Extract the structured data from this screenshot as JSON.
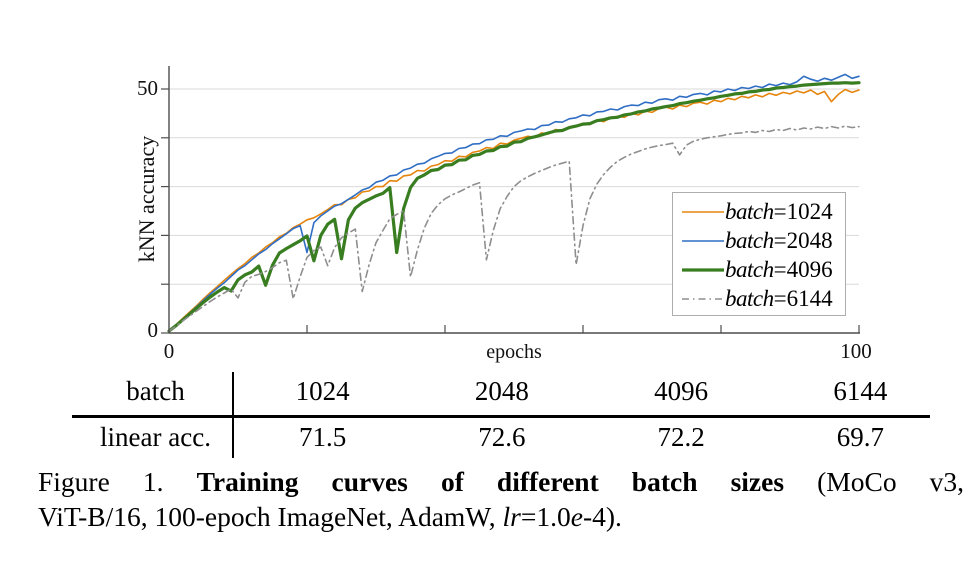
{
  "axes": {
    "ylabel": "kNN accuracy",
    "xlabel": "epochs",
    "y_tick_top": "50",
    "y_tick_bottom": "0",
    "x_tick_left": "0",
    "x_tick_right": "100"
  },
  "chart_data": {
    "type": "line",
    "title": "",
    "xlabel": "epochs",
    "ylabel": "kNN accuracy",
    "xlim": [
      0,
      100
    ],
    "ylim": [
      0,
      56
    ],
    "x_ticks": [
      0,
      20,
      40,
      60,
      80,
      100
    ],
    "y_ticks": [
      0,
      10,
      20,
      30,
      40,
      50
    ],
    "grid": "horizontal",
    "legend_position": "inside lower right",
    "x": [
      0,
      1,
      2,
      3,
      4,
      5,
      6,
      7,
      8,
      9,
      10,
      11,
      12,
      13,
      14,
      15,
      16,
      17,
      18,
      19,
      20,
      21,
      22,
      23,
      24,
      25,
      26,
      27,
      28,
      29,
      30,
      31,
      32,
      33,
      34,
      35,
      36,
      37,
      38,
      39,
      40,
      41,
      42,
      43,
      44,
      45,
      46,
      47,
      48,
      49,
      50,
      51,
      52,
      53,
      54,
      55,
      56,
      57,
      58,
      59,
      60,
      61,
      62,
      63,
      64,
      65,
      66,
      67,
      68,
      69,
      70,
      71,
      72,
      73,
      74,
      75,
      76,
      77,
      78,
      79,
      80,
      81,
      82,
      83,
      84,
      85,
      86,
      87,
      88,
      89,
      90,
      91,
      92,
      93,
      94,
      95,
      96,
      97,
      98,
      99,
      100
    ],
    "series": [
      {
        "name": "batch=1024",
        "var": "batch",
        "value_label": "=1024",
        "color": "#e6850e",
        "width": 1.6,
        "dash": "solid",
        "y": [
          0.5,
          1.7,
          3.0,
          4.3,
          5.6,
          7.0,
          8.3,
          9.5,
          10.8,
          12.0,
          13.2,
          14.2,
          15.5,
          16.4,
          17.6,
          18.5,
          19.7,
          20.4,
          21.6,
          22.3,
          23.2,
          23.6,
          24.4,
          25.3,
          26.3,
          26.3,
          27.4,
          27.7,
          28.9,
          29.1,
          30.0,
          30.0,
          31.2,
          31.1,
          32.2,
          32.4,
          33.3,
          33.2,
          34.2,
          34.5,
          35.3,
          35.2,
          36.2,
          36.1,
          37.0,
          37.3,
          38.0,
          37.8,
          38.9,
          38.7,
          39.5,
          39.9,
          40.3,
          40.1,
          41.0,
          40.8,
          41.7,
          41.5,
          42.2,
          42.5,
          43.0,
          42.7,
          43.6,
          43.3,
          44.1,
          44.4,
          44.2,
          45.0,
          44.7,
          45.5,
          45.2,
          46.0,
          46.3,
          45.9,
          46.7,
          46.4,
          47.1,
          47.3,
          46.9,
          47.7,
          47.4,
          48.1,
          47.8,
          48.5,
          48.2,
          48.8,
          48.4,
          49.1,
          48.7,
          49.3,
          49.0,
          49.6,
          49.2,
          49.8,
          48.9,
          49.5,
          47.4,
          48.9,
          49.9,
          49.3,
          49.8
        ]
      },
      {
        "name": "batch=2048",
        "var": "batch",
        "value_label": "=2048",
        "color": "#2f6ec4",
        "width": 1.6,
        "dash": "solid",
        "y": [
          0.5,
          1.6,
          2.8,
          4.1,
          5.4,
          6.7,
          8.0,
          9.2,
          10.3,
          11.6,
          12.9,
          13.8,
          15.0,
          16.2,
          17.1,
          18.3,
          19.3,
          20.3,
          21.4,
          22.0,
          16.5,
          22.6,
          24.0,
          25.0,
          26.0,
          26.5,
          27.4,
          28.3,
          29.3,
          29.8,
          30.9,
          31.3,
          32.2,
          32.4,
          33.4,
          33.8,
          34.6,
          34.8,
          35.7,
          36.2,
          36.8,
          36.9,
          37.8,
          38.0,
          38.7,
          38.8,
          39.6,
          39.7,
          40.4,
          40.3,
          41.1,
          41.4,
          41.8,
          41.7,
          42.5,
          42.6,
          43.3,
          43.2,
          43.9,
          44.1,
          44.7,
          44.5,
          45.3,
          45.4,
          45.9,
          45.7,
          46.4,
          46.7,
          46.6,
          47.3,
          47.1,
          47.8,
          48.0,
          47.7,
          48.5,
          48.3,
          48.9,
          49.1,
          48.8,
          49.6,
          49.4,
          50.0,
          49.7,
          50.3,
          50.1,
          50.6,
          50.3,
          51.0,
          50.7,
          51.2,
          50.9,
          51.5,
          52.6,
          52.0,
          51.6,
          52.2,
          51.8,
          52.4,
          53.0,
          52.2,
          52.6
        ]
      },
      {
        "name": "batch=4096",
        "var": "batch",
        "value_label": "=4096",
        "color": "#397d21",
        "width": 3.2,
        "dash": "solid",
        "y": [
          0.4,
          1.5,
          2.7,
          3.9,
          5.1,
          6.3,
          7.4,
          8.4,
          9.3,
          8.6,
          10.9,
          11.9,
          12.5,
          13.7,
          9.8,
          13.9,
          16.4,
          17.3,
          18.1,
          18.9,
          19.9,
          14.8,
          20.0,
          22.3,
          23.3,
          15.2,
          23.2,
          25.6,
          26.7,
          27.4,
          28.1,
          28.6,
          29.8,
          16.5,
          25.5,
          29.8,
          31.7,
          32.4,
          33.3,
          33.5,
          34.4,
          34.5,
          35.4,
          35.5,
          36.4,
          36.6,
          37.3,
          37.4,
          38.2,
          38.3,
          39.1,
          39.2,
          39.9,
          40.2,
          40.6,
          41.0,
          41.4,
          41.5,
          42.1,
          42.4,
          42.8,
          42.9,
          43.5,
          43.7,
          44.1,
          44.2,
          44.7,
          44.9,
          45.3,
          45.5,
          45.9,
          46.1,
          46.4,
          46.6,
          47.0,
          47.2,
          47.5,
          47.7,
          48.0,
          48.2,
          48.5,
          48.7,
          49.0,
          49.1,
          49.4,
          49.5,
          49.8,
          49.9,
          50.2,
          50.3,
          50.5,
          50.6,
          50.8,
          50.9,
          51.0,
          51.1,
          51.2,
          51.2,
          51.3,
          51.2,
          51.3
        ]
      },
      {
        "name": "batch=6144",
        "var": "batch",
        "value_label": "=6144",
        "color": "#8e8e8e",
        "width": 1.6,
        "dash": "dashdot",
        "y": [
          0.4,
          1.4,
          2.5,
          3.5,
          4.5,
          5.5,
          6.5,
          7.4,
          8.2,
          9.0,
          7.2,
          10.4,
          11.6,
          12.0,
          12.6,
          13.4,
          14.4,
          14.9,
          7.0,
          11.5,
          15.5,
          16.9,
          17.6,
          13.8,
          17.5,
          19.5,
          20.5,
          21.3,
          8.5,
          14.0,
          18.5,
          21.0,
          23.4,
          24.3,
          25.0,
          11.5,
          17.0,
          21.5,
          24.5,
          26.3,
          27.5,
          28.3,
          28.9,
          29.6,
          30.3,
          30.8,
          15.0,
          21.0,
          25.5,
          28.0,
          30.0,
          31.2,
          32.0,
          32.7,
          33.3,
          33.9,
          34.4,
          34.8,
          35.2,
          14.0,
          22.0,
          27.5,
          30.5,
          32.5,
          34.0,
          35.2,
          36.0,
          36.7,
          37.2,
          37.7,
          38.1,
          38.4,
          38.6,
          38.9,
          36.5,
          38.5,
          39.3,
          39.7,
          40.0,
          40.2,
          40.4,
          40.7,
          40.9,
          41.0,
          41.3,
          41.1,
          41.5,
          41.3,
          41.7,
          41.5,
          41.9,
          41.6,
          42.0,
          41.8,
          42.2,
          41.9,
          42.3,
          42.0,
          42.4,
          42.1,
          42.3
        ]
      }
    ]
  },
  "table": {
    "header_label": "batch",
    "row_label": "linear acc.",
    "columns": [
      "1024",
      "2048",
      "4096",
      "6144"
    ],
    "values": [
      "71.5",
      "72.6",
      "72.2",
      "69.7"
    ]
  },
  "caption": {
    "figure_label": "Figure 1.",
    "bold_text": "Training curves of different batch sizes",
    "line1_rest": " (MoCo v3,",
    "line2_pre": "ViT-B/16, 100-epoch ImageNet, AdamW, ",
    "lr": "lr",
    "mid": "=1.0",
    "e": "e",
    "line2_end": "-4)."
  }
}
